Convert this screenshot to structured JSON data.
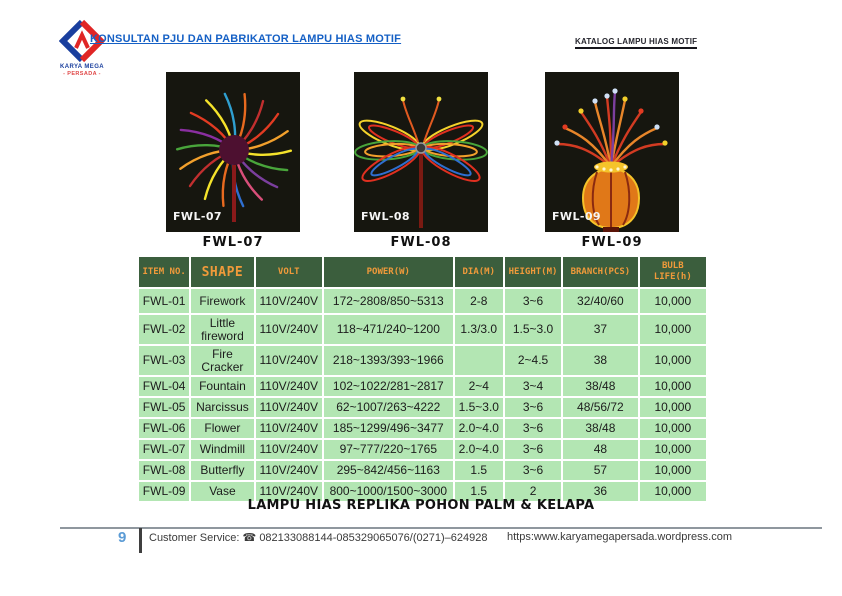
{
  "header": {
    "brand_line1": "KARYA MEGA",
    "brand_line2": "- PERSADA -",
    "left_link": "KONSULTAN PJU DAN PABRIKATOR LAMPU HIAS MOTIF",
    "right_link": "KATALOG  LAMPU HIAS MOTIF"
  },
  "products": [
    {
      "overlay_label": "FWL-07",
      "caption": "FWL-07",
      "icon": "windmill-motif-light"
    },
    {
      "overlay_label": "FWL-08",
      "caption": "FWL-08",
      "icon": "butterfly-motif-light"
    },
    {
      "overlay_label": "FWL-09",
      "caption": "FWL-09",
      "icon": "vase-motif-light"
    }
  ],
  "table": {
    "headers": [
      "ITEM NO.",
      "SHAPE",
      "VOLT",
      "POWER(W)",
      "DIA(M)",
      "HEIGHT(M)",
      "BRANCH(PCS)",
      "BULB LIFE(h)"
    ],
    "rows": [
      [
        "FWL-01",
        "Firework",
        "110V/240V",
        "172~2808/850~5313",
        "2-8",
        "3~6",
        "32/40/60",
        "10,000"
      ],
      [
        "FWL-02",
        "Little fireword",
        "110V/240V",
        "118~471/240~1200",
        "1.3/3.0",
        "1.5~3.0",
        "37",
        "10,000"
      ],
      [
        "FWL-03",
        "Fire Cracker",
        "110V/240V",
        "218~1393/393~1966",
        "",
        "2~4.5",
        "38",
        "10,000"
      ],
      [
        "FWL-04",
        "Fountain",
        "110V/240V",
        "102~1022/281~2817",
        "2~4",
        "3~4",
        "38/48",
        "10,000"
      ],
      [
        "FWL-05",
        "Narcissus",
        "110V/240V",
        "62~1007/263~4222",
        "1.5~3.0",
        "3~6",
        "48/56/72",
        "10,000"
      ],
      [
        "FWL-06",
        "Flower",
        "110V/240V",
        "185~1299/496~3477",
        "2.0~4.0",
        "3~6",
        "38/48",
        "10,000"
      ],
      [
        "FWL-07",
        "Windmill",
        "110V/240V",
        "97~777/220~1765",
        "2.0~4.0",
        "3~6",
        "48",
        "10,000"
      ],
      [
        "FWL-08",
        "Butterfly",
        "110V/240V",
        "295~842/456~1163",
        "1.5",
        "3~6",
        "57",
        "10,000"
      ],
      [
        "FWL-09",
        "Vase",
        "110V/240V",
        "800~1000/1500~3000",
        "1.5",
        "2",
        "36",
        "10,000"
      ]
    ]
  },
  "section_heading": "LAMPU HIAS REPLIKA POHON PALM & KELAPA",
  "footer": {
    "page_number": "9",
    "customer_service_label": "Customer Service:",
    "phone_icon": "☎",
    "phone_numbers": "082133088144-085329065076/(0271)–624928",
    "website": "https:www.karyamegapersada.wordpress.com"
  },
  "colors": {
    "table_header_bg": "#3b5e3d",
    "table_header_text": "#f09a3a",
    "table_row_bg": "#b3e6b3",
    "link_blue": "#1560c5",
    "page_number_blue": "#5b9bd5",
    "photo_bg": "#16160f"
  }
}
